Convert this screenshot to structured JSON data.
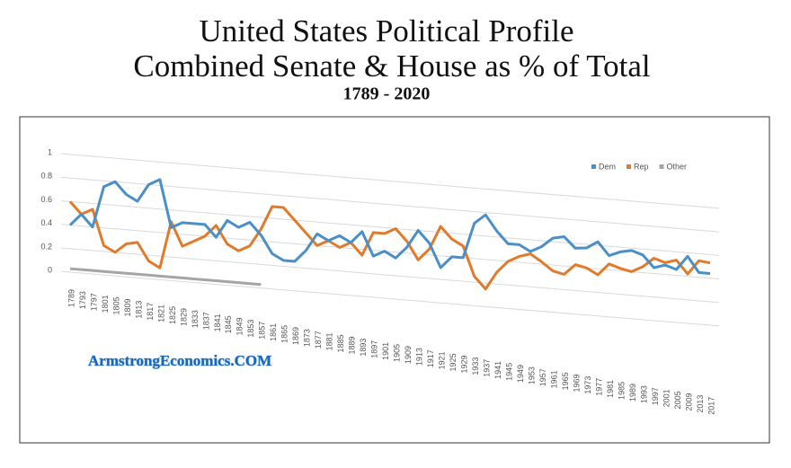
{
  "chart_data": {
    "type": "line",
    "title": "United States Political Profile",
    "subtitle": "Combined Senate & House as % of Total",
    "period": "1789 - 2020",
    "watermark": "ArmstrongEconomics.COM",
    "categories": [
      "1789",
      "1793",
      "1797",
      "1801",
      "1805",
      "1809",
      "1813",
      "1817",
      "1821",
      "1825",
      "1829",
      "1833",
      "1837",
      "1841",
      "1845",
      "1849",
      "1853",
      "1857",
      "1861",
      "1865",
      "1869",
      "1873",
      "1877",
      "1881",
      "1885",
      "1889",
      "1893",
      "1897",
      "1901",
      "1905",
      "1909",
      "1913",
      "1917",
      "1921",
      "1925",
      "1929",
      "1933",
      "1937",
      "1941",
      "1945",
      "1949",
      "1953",
      "1957",
      "1961",
      "1965",
      "1969",
      "1973",
      "1977",
      "1981",
      "1985",
      "1989",
      "1993",
      "1997",
      "2001",
      "2005",
      "2009",
      "2013",
      "2017"
    ],
    "series": [
      {
        "name": "Dem",
        "color": "#4a8fc7",
        "values": [
          0.4,
          0.5,
          0.4,
          0.75,
          0.8,
          0.7,
          0.65,
          0.8,
          0.85,
          0.45,
          0.5,
          0.5,
          0.5,
          0.4,
          0.55,
          0.5,
          0.55,
          0.45,
          0.3,
          0.25,
          0.25,
          0.35,
          0.5,
          0.45,
          0.5,
          0.45,
          0.55,
          0.35,
          0.4,
          0.35,
          0.45,
          0.6,
          0.5,
          0.3,
          0.4,
          0.4,
          0.7,
          0.78,
          0.65,
          0.55,
          0.55,
          0.5,
          0.55,
          0.63,
          0.65,
          0.56,
          0.57,
          0.63,
          0.52,
          0.56,
          0.58,
          0.55,
          0.45,
          0.48,
          0.45,
          0.57,
          0.44,
          0.44
        ]
      },
      {
        "name": "Rep",
        "color": "#e07b2c",
        "values": [
          0.6,
          0.5,
          0.55,
          0.25,
          0.2,
          0.28,
          0.3,
          0.15,
          0.1,
          0.5,
          0.3,
          0.35,
          0.4,
          0.5,
          0.35,
          0.3,
          0.35,
          0.5,
          0.7,
          0.7,
          0.6,
          0.5,
          0.4,
          0.45,
          0.4,
          0.45,
          0.35,
          0.55,
          0.55,
          0.6,
          0.5,
          0.35,
          0.45,
          0.65,
          0.55,
          0.5,
          0.25,
          0.15,
          0.3,
          0.4,
          0.45,
          0.48,
          0.42,
          0.35,
          0.33,
          0.42,
          0.4,
          0.35,
          0.45,
          0.42,
          0.4,
          0.45,
          0.53,
          0.5,
          0.53,
          0.42,
          0.54,
          0.53
        ]
      },
      {
        "name": "Other",
        "color": "#a5a5a5",
        "values": [
          0.03,
          0.03,
          0.03,
          0.03,
          0.03,
          0.03,
          0.03,
          0.03,
          0.03,
          0.03,
          0.03,
          0.03,
          0.03,
          0.03,
          0.03,
          0.03,
          0.03,
          0.03,
          null,
          null,
          null,
          null,
          null,
          null,
          null,
          null,
          null,
          null,
          null,
          null,
          null,
          null,
          null,
          null,
          null,
          null,
          null,
          null,
          null,
          null,
          null,
          null,
          null,
          null,
          null,
          null,
          null,
          null,
          null,
          null,
          null,
          null,
          null,
          null,
          null,
          null,
          null,
          null
        ]
      }
    ],
    "ylim": [
      0,
      1
    ],
    "yticks": [
      0,
      0.2,
      0.4,
      0.6,
      0.8,
      1
    ],
    "grid": true,
    "legend": "top-right"
  }
}
